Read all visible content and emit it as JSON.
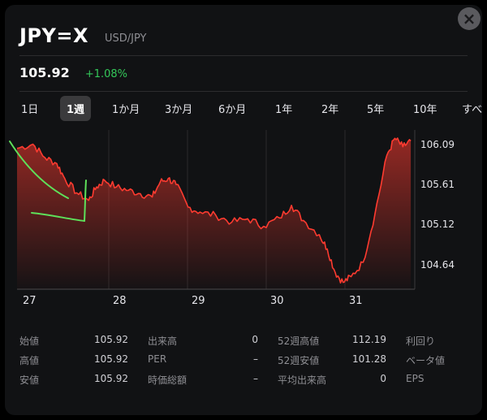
{
  "header": {
    "symbol": "JPY=X",
    "pair": "USD/JPY",
    "close_glyph": "×",
    "close_icon": "close-icon"
  },
  "quote": {
    "price": "105.92",
    "change": "+1.08%"
  },
  "tabs": [
    "1日",
    "1週",
    "1か月",
    "3か月",
    "6か月",
    "1年",
    "2年",
    "5年",
    "10年",
    "すべ"
  ],
  "active_tab": "1週",
  "chart_data": {
    "type": "area",
    "symbol": "JPY=X",
    "x_tick_labels": [
      "27",
      "28",
      "29",
      "30",
      "31"
    ],
    "y_tick_labels": [
      "106.09",
      "105.61",
      "105.12",
      "104.64"
    ],
    "ylim": [
      104.3,
      106.2
    ],
    "points": [
      [
        0.0,
        105.98
      ],
      [
        0.2,
        106.03
      ],
      [
        0.35,
        105.87
      ],
      [
        0.5,
        105.8
      ],
      [
        0.6,
        105.62
      ],
      [
        0.75,
        105.45
      ],
      [
        0.9,
        105.36
      ],
      [
        1.0,
        105.52
      ],
      [
        1.1,
        105.6
      ],
      [
        1.25,
        105.52
      ],
      [
        1.4,
        105.48
      ],
      [
        1.55,
        105.44
      ],
      [
        1.7,
        105.4
      ],
      [
        1.8,
        105.58
      ],
      [
        1.9,
        105.62
      ],
      [
        2.0,
        105.55
      ],
      [
        2.15,
        105.28
      ],
      [
        2.3,
        105.22
      ],
      [
        2.5,
        105.18
      ],
      [
        2.7,
        105.1
      ],
      [
        2.9,
        105.14
      ],
      [
        3.1,
        105.05
      ],
      [
        3.3,
        105.15
      ],
      [
        3.45,
        105.3
      ],
      [
        3.6,
        105.12
      ],
      [
        3.8,
        104.95
      ],
      [
        3.9,
        104.78
      ],
      [
        4.0,
        104.5
      ],
      [
        4.1,
        104.38
      ],
      [
        4.2,
        104.45
      ],
      [
        4.35,
        104.62
      ],
      [
        4.5,
        105.2
      ],
      [
        4.65,
        105.9
      ],
      [
        4.75,
        106.1
      ],
      [
        4.85,
        106.0
      ],
      [
        4.95,
        106.07
      ]
    ]
  },
  "stats": [
    {
      "label": "始値",
      "value": "105.92"
    },
    {
      "label": "高値",
      "value": "105.92"
    },
    {
      "label": "安値",
      "value": "105.92"
    },
    {
      "label": "出来高",
      "value": "0"
    },
    {
      "label": "PER",
      "value": "–"
    },
    {
      "label": "時価総額",
      "value": "–"
    },
    {
      "label": "52週高値",
      "value": "112.19"
    },
    {
      "label": "52週安値",
      "value": "101.28"
    },
    {
      "label": "平均出来高",
      "value": "0"
    },
    {
      "label": "利回り",
      "value": ""
    },
    {
      "label": "ベータ値",
      "value": ""
    },
    {
      "label": "EPS",
      "value": ""
    }
  ],
  "colors": {
    "up": "#34c759",
    "line": "#ff3b30",
    "annotation": "#5ee05a"
  }
}
